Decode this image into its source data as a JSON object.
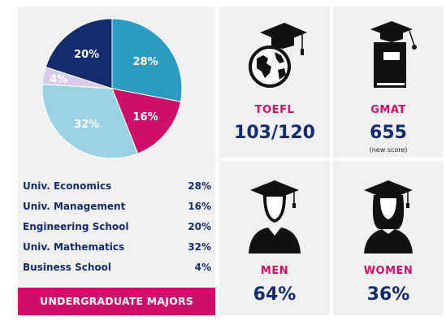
{
  "chart_data": {
    "type": "pie",
    "slices": [
      {
        "label": "Univ. Economics",
        "value": 28,
        "color": "#2b9bc1"
      },
      {
        "label": "Univ. Management",
        "value": 16,
        "color": "#cc0f69"
      },
      {
        "label": "Univ. Mathematics",
        "value": 32,
        "color": "#9cd3e4"
      },
      {
        "label": "Business School",
        "value": 4,
        "color": "#d8cde6"
      },
      {
        "label": "Engineering School",
        "value": 20,
        "color": "#142c6b"
      }
    ],
    "slice_labels": [
      "28%",
      "16%",
      "32%",
      "4%",
      "20%"
    ]
  },
  "legend": [
    {
      "label": "Univ. Economics",
      "value": "28%"
    },
    {
      "label": "Univ. Management",
      "value": "16%"
    },
    {
      "label": "Engineering School",
      "value": "20%"
    },
    {
      "label": "Univ. Mathematics",
      "value": "32%"
    },
    {
      "label": "Business School",
      "value": "4%"
    }
  ],
  "footer": "UNDERGRADUATE MAJORS",
  "stats": {
    "toefl": {
      "label": "TOEFL",
      "value": "103/120",
      "icon": "globe-graduation-cap-icon"
    },
    "gmat": {
      "label": "GMAT",
      "value": "655",
      "note": "(new score)",
      "icon": "book-graduation-cap-icon"
    },
    "men": {
      "label": "MEN",
      "value": "64%",
      "icon": "male-graduate-icon"
    },
    "women": {
      "label": "WOMEN",
      "value": "36%",
      "icon": "female-graduate-icon"
    }
  },
  "colors": {
    "accent": "#cc0f69",
    "navy": "#142c6b",
    "panel": "#f0f0f0"
  }
}
